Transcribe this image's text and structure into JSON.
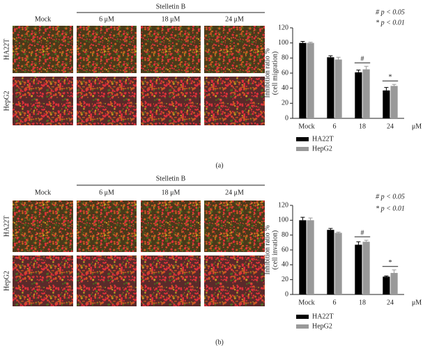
{
  "panels": [
    {
      "label": "(a)",
      "treatment": "Stelletin B",
      "columns": [
        "Mock",
        "6 μM",
        "18 μM",
        "24 μM"
      ],
      "rows": [
        "HA22T",
        "HepG2"
      ]
    },
    {
      "label": "(b)",
      "treatment": "Stelletin B",
      "columns": [
        "Mock",
        "6 μM",
        "18 μM",
        "24 μM"
      ],
      "rows": [
        "HA22T",
        "HepG2"
      ]
    }
  ],
  "chart_data": [
    {
      "type": "bar",
      "y_label": "Inhibition ratio %",
      "y_label_sub": "(cell migration)",
      "x_unit": "μM",
      "categories": [
        "Mock",
        "6",
        "18",
        "24"
      ],
      "series": [
        {
          "name": "HA22T",
          "color": "#000000",
          "values": [
            100,
            81,
            61,
            37
          ],
          "errors": [
            2,
            2,
            3,
            4
          ]
        },
        {
          "name": "HepG2",
          "color": "#999999",
          "values": [
            100,
            78,
            65,
            43
          ],
          "errors": [
            1,
            3,
            4,
            2
          ]
        }
      ],
      "significance_marks": [
        null,
        null,
        "#",
        "*"
      ],
      "annotations": [
        "# p < 0.05",
        "* p < 0.01"
      ],
      "ylim": [
        0,
        120
      ],
      "yticks": [
        0,
        20,
        40,
        60,
        80,
        100,
        120
      ]
    },
    {
      "type": "bar",
      "y_label": "Inhibition ratio %",
      "y_label_sub": "(cell invation)",
      "x_unit": "μM",
      "categories": [
        "Mock",
        "6",
        "18",
        "24"
      ],
      "series": [
        {
          "name": "HA22T",
          "color": "#000000",
          "values": [
            100,
            87,
            67,
            24
          ],
          "errors": [
            4,
            2,
            4,
            1
          ]
        },
        {
          "name": "HepG2",
          "color": "#999999",
          "values": [
            100,
            83,
            71,
            29
          ],
          "errors": [
            3,
            1,
            2,
            4
          ]
        }
      ],
      "significance_marks": [
        null,
        null,
        "#",
        "*"
      ],
      "annotations": [
        "# p < 0.05",
        "* p < 0.01"
      ],
      "ylim": [
        0,
        120
      ],
      "yticks": [
        0,
        20,
        40,
        60,
        80,
        100,
        120
      ]
    }
  ]
}
